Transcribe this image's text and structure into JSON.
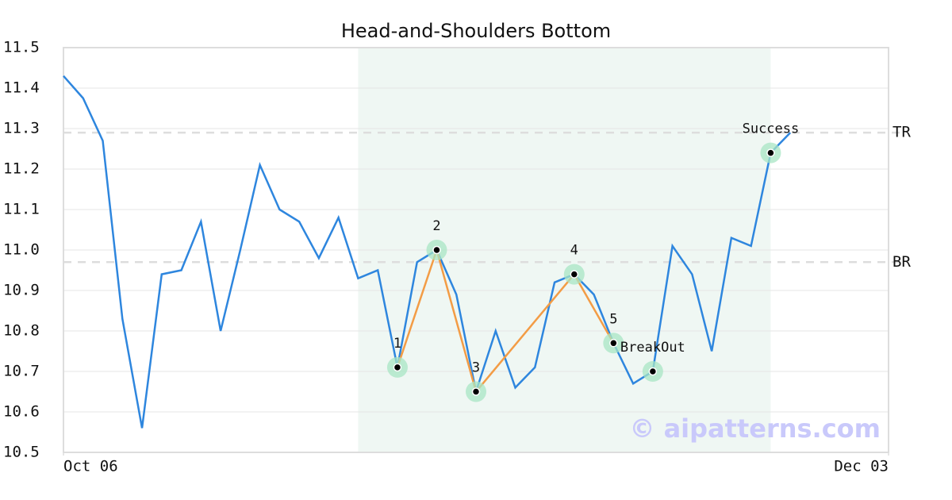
{
  "chart_data": {
    "type": "line",
    "title": "Head-and-Shoulders Bottom",
    "x": [
      0,
      1,
      2,
      3,
      4,
      5,
      6,
      7,
      8,
      9,
      10,
      11,
      12,
      13,
      14,
      15,
      16,
      17,
      18,
      19,
      20,
      21,
      22,
      23,
      24,
      25,
      26,
      27,
      28,
      29,
      30,
      31,
      32,
      33,
      34,
      35,
      36,
      37
    ],
    "values": [
      11.43,
      11.375,
      11.27,
      10.83,
      10.56,
      10.94,
      10.95,
      11.07,
      10.8,
      11.0,
      11.21,
      11.1,
      11.07,
      10.98,
      11.08,
      10.93,
      10.95,
      10.71,
      10.97,
      11.0,
      10.89,
      10.65,
      10.8,
      10.66,
      10.71,
      10.92,
      10.94,
      10.89,
      10.77,
      10.67,
      10.7,
      11.01,
      10.94,
      10.75,
      11.03,
      11.01,
      11.24,
      11.29
    ],
    "color": "#2e86de",
    "xlim": [
      0,
      42
    ],
    "xticks": [
      {
        "value": 0,
        "label": "Oct 06"
      },
      {
        "value": 42,
        "label": "Dec 03"
      }
    ],
    "ylim": [
      10.5,
      11.5
    ],
    "yticks": [
      10.5,
      10.6,
      10.7,
      10.8,
      10.9,
      {
        "value": 11,
        "label": "11.0"
      },
      11.1,
      11.2,
      11.3,
      11.4,
      11.5
    ],
    "grid": true,
    "highlight_range": [
      15,
      36
    ],
    "highlight_color": "#eff7f3",
    "levels": [
      {
        "label": "TR",
        "value": 11.29
      },
      {
        "label": "BR",
        "value": 10.97
      }
    ],
    "pattern_color": "#f39c45",
    "pattern_points": [
      {
        "label": "1",
        "x": 17,
        "value": 10.71
      },
      {
        "label": "2",
        "x": 19,
        "value": 11.0
      },
      {
        "label": "3",
        "x": 21,
        "value": 10.65
      },
      {
        "label": "4",
        "x": 26,
        "value": 10.94
      },
      {
        "label": "5",
        "x": 28,
        "value": 10.77
      }
    ],
    "events": [
      {
        "label": "BreakOut",
        "x": 30,
        "value": 10.7
      },
      {
        "label": "Success",
        "x": 36,
        "value": 11.24
      }
    ],
    "watermark": "© aipatterns.com"
  }
}
